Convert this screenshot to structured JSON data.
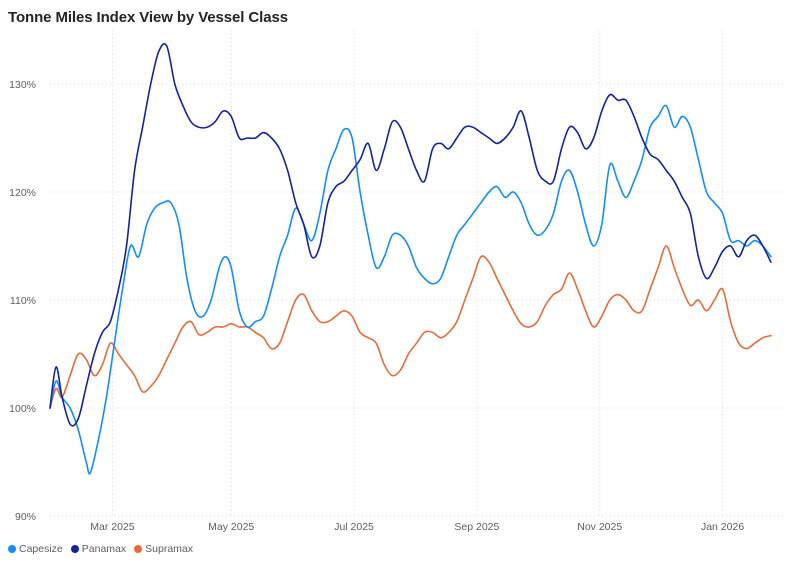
{
  "chart_data": {
    "type": "line",
    "title": "Tonne Miles Index View by Vessel Class",
    "xlabel": "",
    "ylabel": "",
    "ylim": [
      90,
      135
    ],
    "yticks": [
      90,
      100,
      110,
      120,
      130
    ],
    "ytick_labels": [
      "90%",
      "100%",
      "110%",
      "120%",
      "130%"
    ],
    "x_range": [
      0,
      365
    ],
    "xticks": [
      31,
      90,
      151,
      212,
      273,
      334
    ],
    "xtick_labels": [
      "Mar 2025",
      "May 2025",
      "Jul 2025",
      "Sep 2025",
      "Nov 2025",
      "Jan 2026"
    ],
    "grid": true,
    "legend_position": "bottom-left",
    "series": [
      {
        "name": "Capesize",
        "color": "#118dff",
        "points": [
          [
            0,
            100
          ],
          [
            3,
            102.5
          ],
          [
            6,
            101
          ],
          [
            10,
            100
          ],
          [
            14,
            98
          ],
          [
            18,
            95
          ],
          [
            20,
            94
          ],
          [
            24,
            97
          ],
          [
            28,
            101
          ],
          [
            32,
            106
          ],
          [
            36,
            111
          ],
          [
            40,
            115
          ],
          [
            44,
            114
          ],
          [
            48,
            117
          ],
          [
            52,
            118.5
          ],
          [
            56,
            119
          ],
          [
            60,
            119
          ],
          [
            64,
            117
          ],
          [
            68,
            112
          ],
          [
            72,
            109
          ],
          [
            76,
            108.5
          ],
          [
            80,
            110
          ],
          [
            84,
            113
          ],
          [
            87,
            114
          ],
          [
            90,
            113
          ],
          [
            94,
            109
          ],
          [
            98,
            107.5
          ],
          [
            102,
            108
          ],
          [
            106,
            108.5
          ],
          [
            110,
            111
          ],
          [
            114,
            114
          ],
          [
            118,
            116
          ],
          [
            122,
            118.5
          ],
          [
            126,
            117
          ],
          [
            130,
            115.5
          ],
          [
            134,
            118
          ],
          [
            138,
            122
          ],
          [
            142,
            124
          ],
          [
            146,
            125.8
          ],
          [
            150,
            125
          ],
          [
            154,
            120
          ],
          [
            158,
            116
          ],
          [
            162,
            113
          ],
          [
            166,
            114
          ],
          [
            170,
            116
          ],
          [
            174,
            116
          ],
          [
            178,
            115
          ],
          [
            182,
            113
          ],
          [
            186,
            112
          ],
          [
            190,
            111.5
          ],
          [
            194,
            112
          ],
          [
            198,
            114
          ],
          [
            202,
            116
          ],
          [
            206,
            117
          ],
          [
            210,
            118
          ],
          [
            214,
            119
          ],
          [
            218,
            120
          ],
          [
            222,
            120.5
          ],
          [
            226,
            119.5
          ],
          [
            230,
            120
          ],
          [
            234,
            119
          ],
          [
            238,
            117
          ],
          [
            242,
            116
          ],
          [
            246,
            116.5
          ],
          [
            250,
            118
          ],
          [
            254,
            121
          ],
          [
            258,
            122
          ],
          [
            262,
            120
          ],
          [
            266,
            117
          ],
          [
            270,
            115
          ],
          [
            274,
            117
          ],
          [
            278,
            122.5
          ],
          [
            282,
            121
          ],
          [
            286,
            119.5
          ],
          [
            290,
            121
          ],
          [
            294,
            123
          ],
          [
            298,
            126
          ],
          [
            302,
            127
          ],
          [
            306,
            128
          ],
          [
            310,
            126
          ],
          [
            314,
            127
          ],
          [
            318,
            126
          ],
          [
            322,
            123
          ],
          [
            326,
            120
          ],
          [
            330,
            119
          ],
          [
            334,
            118
          ],
          [
            338,
            115.5
          ],
          [
            342,
            115.5
          ],
          [
            346,
            115
          ],
          [
            350,
            115.5
          ],
          [
            354,
            115
          ],
          [
            358,
            114
          ]
        ]
      },
      {
        "name": "Panamax",
        "color": "#12239e",
        "points": [
          [
            0,
            100
          ],
          [
            3,
            103.8
          ],
          [
            6,
            101
          ],
          [
            10,
            98.5
          ],
          [
            14,
            99
          ],
          [
            18,
            102
          ],
          [
            22,
            105
          ],
          [
            26,
            107
          ],
          [
            30,
            108
          ],
          [
            34,
            111
          ],
          [
            38,
            115
          ],
          [
            42,
            122
          ],
          [
            46,
            126
          ],
          [
            50,
            130
          ],
          [
            54,
            133
          ],
          [
            58,
            133.5
          ],
          [
            62,
            130
          ],
          [
            66,
            128
          ],
          [
            70,
            126.5
          ],
          [
            74,
            126
          ],
          [
            78,
            126
          ],
          [
            82,
            126.5
          ],
          [
            86,
            127.5
          ],
          [
            90,
            127
          ],
          [
            94,
            125
          ],
          [
            98,
            125
          ],
          [
            102,
            125
          ],
          [
            106,
            125.5
          ],
          [
            110,
            125
          ],
          [
            114,
            124
          ],
          [
            118,
            122
          ],
          [
            122,
            119
          ],
          [
            126,
            117
          ],
          [
            130,
            114
          ],
          [
            134,
            115
          ],
          [
            138,
            119
          ],
          [
            142,
            120.5
          ],
          [
            146,
            121
          ],
          [
            150,
            122
          ],
          [
            154,
            123
          ],
          [
            158,
            124.5
          ],
          [
            162,
            122
          ],
          [
            166,
            124
          ],
          [
            170,
            126.5
          ],
          [
            174,
            126
          ],
          [
            178,
            124
          ],
          [
            182,
            122
          ],
          [
            186,
            121
          ],
          [
            190,
            124
          ],
          [
            194,
            124.5
          ],
          [
            198,
            124
          ],
          [
            202,
            125
          ],
          [
            206,
            126
          ],
          [
            210,
            126
          ],
          [
            214,
            125.5
          ],
          [
            218,
            125
          ],
          [
            222,
            124.5
          ],
          [
            226,
            125
          ],
          [
            230,
            126
          ],
          [
            234,
            127.5
          ],
          [
            238,
            125
          ],
          [
            242,
            122
          ],
          [
            246,
            121
          ],
          [
            250,
            121
          ],
          [
            254,
            124
          ],
          [
            258,
            126
          ],
          [
            262,
            125.5
          ],
          [
            266,
            124
          ],
          [
            270,
            125
          ],
          [
            274,
            127.5
          ],
          [
            278,
            129
          ],
          [
            282,
            128.5
          ],
          [
            286,
            128.5
          ],
          [
            290,
            127
          ],
          [
            294,
            125
          ],
          [
            298,
            123.5
          ],
          [
            302,
            123
          ],
          [
            306,
            122
          ],
          [
            310,
            121
          ],
          [
            314,
            119.5
          ],
          [
            318,
            118
          ],
          [
            322,
            114
          ],
          [
            326,
            112
          ],
          [
            330,
            113
          ],
          [
            334,
            114.5
          ],
          [
            338,
            115
          ],
          [
            342,
            114
          ],
          [
            346,
            115.5
          ],
          [
            350,
            116
          ],
          [
            354,
            115
          ],
          [
            358,
            113.5
          ]
        ]
      },
      {
        "name": "Supramax",
        "color": "#e66c37",
        "points": [
          [
            0,
            100
          ],
          [
            3,
            101.8
          ],
          [
            6,
            101
          ],
          [
            10,
            103
          ],
          [
            14,
            105
          ],
          [
            18,
            104.5
          ],
          [
            22,
            103
          ],
          [
            26,
            104
          ],
          [
            30,
            106
          ],
          [
            34,
            105
          ],
          [
            38,
            104
          ],
          [
            42,
            103
          ],
          [
            46,
            101.5
          ],
          [
            50,
            102
          ],
          [
            54,
            103
          ],
          [
            58,
            104.5
          ],
          [
            62,
            106
          ],
          [
            66,
            107.5
          ],
          [
            70,
            108
          ],
          [
            74,
            106.8
          ],
          [
            78,
            107
          ],
          [
            82,
            107.5
          ],
          [
            86,
            107.5
          ],
          [
            90,
            107.8
          ],
          [
            94,
            107.5
          ],
          [
            98,
            107.5
          ],
          [
            102,
            107
          ],
          [
            106,
            106.5
          ],
          [
            110,
            105.5
          ],
          [
            114,
            106
          ],
          [
            118,
            108
          ],
          [
            122,
            110
          ],
          [
            126,
            110.5
          ],
          [
            130,
            109
          ],
          [
            134,
            108
          ],
          [
            138,
            108
          ],
          [
            142,
            108.5
          ],
          [
            146,
            109
          ],
          [
            150,
            108.5
          ],
          [
            154,
            107
          ],
          [
            158,
            106.5
          ],
          [
            162,
            106
          ],
          [
            166,
            104
          ],
          [
            170,
            103
          ],
          [
            174,
            103.5
          ],
          [
            178,
            105
          ],
          [
            182,
            106
          ],
          [
            186,
            107
          ],
          [
            190,
            107
          ],
          [
            194,
            106.5
          ],
          [
            198,
            107
          ],
          [
            202,
            108
          ],
          [
            206,
            110
          ],
          [
            210,
            112
          ],
          [
            214,
            114
          ],
          [
            218,
            113.5
          ],
          [
            222,
            112
          ],
          [
            226,
            110.5
          ],
          [
            230,
            109
          ],
          [
            234,
            107.8
          ],
          [
            238,
            107.5
          ],
          [
            242,
            108
          ],
          [
            246,
            109.5
          ],
          [
            250,
            110.5
          ],
          [
            254,
            111
          ],
          [
            258,
            112.5
          ],
          [
            262,
            111
          ],
          [
            266,
            109
          ],
          [
            270,
            107.5
          ],
          [
            274,
            108.5
          ],
          [
            278,
            110
          ],
          [
            282,
            110.5
          ],
          [
            286,
            110
          ],
          [
            290,
            109
          ],
          [
            294,
            109
          ],
          [
            298,
            111
          ],
          [
            302,
            113
          ],
          [
            306,
            115
          ],
          [
            310,
            113
          ],
          [
            314,
            111
          ],
          [
            318,
            109.5
          ],
          [
            322,
            110
          ],
          [
            326,
            109
          ],
          [
            330,
            110
          ],
          [
            334,
            111
          ],
          [
            338,
            108
          ],
          [
            342,
            106
          ],
          [
            346,
            105.5
          ],
          [
            350,
            106
          ],
          [
            354,
            106.5
          ],
          [
            358,
            106.7
          ]
        ]
      }
    ]
  }
}
